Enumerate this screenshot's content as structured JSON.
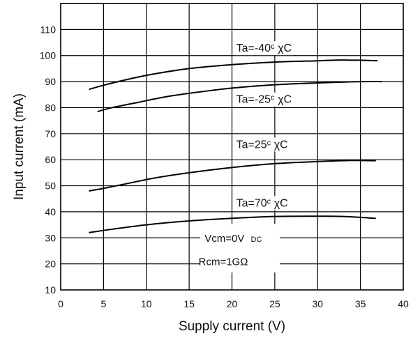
{
  "chart_data": {
    "type": "line",
    "xlabel": "Supply current  (V)",
    "ylabel": "Input current  (mA)",
    "xlim": [
      0,
      40
    ],
    "ylim": [
      10,
      120
    ],
    "xticks": [
      0,
      5,
      10,
      15,
      20,
      25,
      30,
      35,
      40
    ],
    "yticks": [
      10,
      20,
      30,
      40,
      50,
      60,
      70,
      80,
      90,
      100,
      110
    ],
    "grid": true,
    "series": [
      {
        "name": "Ta=-40°C",
        "label_text": "Ta=-40ᶜ χC",
        "x": [
          3.3,
          5,
          8,
          11,
          15,
          20,
          25,
          30,
          33,
          37
        ],
        "y": [
          87,
          88.6,
          91,
          93,
          95,
          96.5,
          97.5,
          98,
          98.3,
          98
        ]
      },
      {
        "name": "Ta=-25°C",
        "label_text": "Ta=-25ᶜ χC",
        "x": [
          4.3,
          6,
          9,
          12,
          15,
          20,
          25,
          30,
          35,
          37.5
        ],
        "y": [
          78.5,
          80,
          82,
          84,
          85.5,
          87.5,
          88.8,
          89.5,
          90,
          90
        ]
      },
      {
        "name": "Ta=25°C",
        "label_text": "Ta=25ᶜ χC",
        "x": [
          3.3,
          5,
          8,
          11,
          15,
          20,
          25,
          30,
          34,
          36.8
        ],
        "y": [
          48,
          49,
          51,
          53,
          55,
          57,
          58.5,
          59.3,
          59.7,
          59.6
        ]
      },
      {
        "name": "Ta=70°C",
        "label_text": "Ta=70ᶜ χC",
        "x": [
          3.3,
          6,
          10,
          15,
          20,
          25,
          30,
          33,
          36.8
        ],
        "y": [
          32,
          33.3,
          35,
          36.5,
          37.5,
          38.2,
          38.3,
          38.2,
          37.5
        ]
      }
    ],
    "note_lines": [
      "Vcm=0V",
      "DC",
      "Rcm=1GΩ"
    ]
  }
}
